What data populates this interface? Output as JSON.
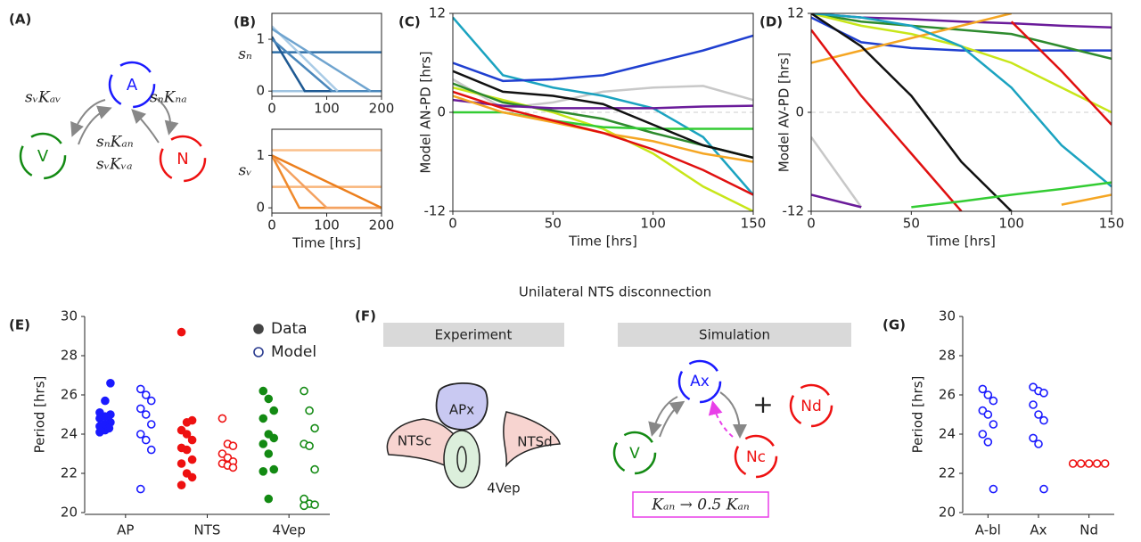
{
  "figure_title": "Unilateral NTS disconnection",
  "diagrams": {
    "A": {
      "panel": "(A)",
      "nodes": [
        "A",
        "V",
        "N"
      ],
      "edge_labels": [
        "sᵥKₐᵥ",
        "sₙKₙₐ",
        "sₙKₐₙ",
        "sᵥKᵥₐ"
      ]
    },
    "F": {
      "panel": "(F)",
      "headers": [
        "Experiment",
        "Simulation"
      ],
      "regions": [
        "APx",
        "NTSc",
        "NTSd",
        "4Vep"
      ],
      "nodes": [
        "Ax",
        "V",
        "Nc",
        "Nd"
      ],
      "plus": "+",
      "caption": "Kₐₙ → 0.5 Kₐₙ"
    }
  },
  "chart_data": [
    {
      "type": "line",
      "panel": "(B)",
      "ylabel": "sₙ",
      "xlim": [
        0,
        200
      ],
      "xticks": [
        0,
        100,
        200
      ],
      "ylim": [
        -0.1,
        1.5
      ],
      "yticks": [
        0,
        1
      ],
      "series": [
        {
          "color": "#2f6fa8",
          "x": [
            0,
            200
          ],
          "values": [
            0.75,
            0.75
          ]
        },
        {
          "color": "#9ec3e0",
          "x": [
            0,
            200
          ],
          "values": [
            0,
            0
          ]
        },
        {
          "color": "#1f5a93",
          "x": [
            0,
            60,
            200
          ],
          "values": [
            1.05,
            0,
            0
          ]
        },
        {
          "color": "#4a87bb",
          "x": [
            0,
            110,
            200
          ],
          "values": [
            1.0,
            0,
            0
          ]
        },
        {
          "color": "#a9cbe6",
          "x": [
            0,
            120
          ],
          "values": [
            1.25,
            0
          ]
        },
        {
          "color": "#6fa4cf",
          "x": [
            0,
            180
          ],
          "values": [
            1.2,
            0
          ]
        }
      ]
    },
    {
      "type": "line",
      "ylabel": "sᵥ",
      "xlabel": "Time [hrs]",
      "xlim": [
        0,
        200
      ],
      "xticks": [
        0,
        100,
        200
      ],
      "ylim": [
        -0.1,
        1.5
      ],
      "yticks": [
        0,
        1
      ],
      "series": [
        {
          "color": "#fbc08c",
          "x": [
            0,
            200
          ],
          "values": [
            1.1,
            1.1
          ]
        },
        {
          "color": "#f8b57a",
          "x": [
            0,
            200
          ],
          "values": [
            0.4,
            0.4
          ]
        },
        {
          "color": "#f08a2c",
          "x": [
            0,
            50,
            200
          ],
          "values": [
            1,
            0,
            0
          ]
        },
        {
          "color": "#f4a261",
          "x": [
            0,
            100,
            200
          ],
          "values": [
            1,
            0,
            0
          ]
        },
        {
          "color": "#ec7f1d",
          "x": [
            0,
            200
          ],
          "values": [
            1,
            0
          ]
        }
      ]
    },
    {
      "type": "line",
      "panel": "(C)",
      "ylabel": "Model AN-PD [hrs]",
      "xlabel": "Time [hrs]",
      "xlim": [
        0,
        150
      ],
      "xticks": [
        0,
        50,
        100,
        150
      ],
      "ylim": [
        -12,
        12
      ],
      "yticks": [
        -12,
        0,
        12
      ],
      "reference_line": 0,
      "x": [
        0,
        25,
        50,
        75,
        100,
        125,
        150
      ],
      "series": [
        {
          "color": "#c8c8c8",
          "values": [
            4,
            0.5,
            1.2,
            2.5,
            3,
            3.2,
            1.5
          ]
        },
        {
          "color": "#1ba3c0",
          "values": [
            11.5,
            4.5,
            3.0,
            2.0,
            0.5,
            -3,
            -10
          ]
        },
        {
          "color": "#1f3fd0",
          "values": [
            6,
            3.8,
            4,
            4.5,
            6,
            7.5,
            9.3
          ]
        },
        {
          "color": "#c8e619",
          "values": [
            3,
            1.5,
            0,
            -2,
            -5,
            -9,
            -12
          ]
        },
        {
          "color": "#2e8b2e",
          "values": [
            3.5,
            1.2,
            0.2,
            -0.8,
            -2.5,
            -4,
            -5.5
          ]
        },
        {
          "color": "#6a1b9a",
          "values": [
            1.5,
            0.8,
            0.5,
            0.5,
            0.5,
            0.7,
            0.8
          ]
        },
        {
          "color": "#33cc33",
          "values": [
            0,
            0,
            -1,
            -1.8,
            -2,
            -2,
            -2
          ]
        },
        {
          "color": "#f5a623",
          "values": [
            2,
            0,
            -1.2,
            -2.5,
            -3.5,
            -5,
            -6
          ]
        },
        {
          "color": "#e01010",
          "values": [
            2.5,
            0.5,
            -1,
            -2.5,
            -4.5,
            -7,
            -10
          ]
        },
        {
          "color": "#111111",
          "values": [
            5,
            2.5,
            2.0,
            1.0,
            -1.5,
            -4,
            -5.5
          ]
        }
      ]
    },
    {
      "type": "line",
      "panel": "(D)",
      "ylabel": "Model AV-PD [hrs]",
      "xlabel": "Time [hrs]",
      "xlim": [
        0,
        150
      ],
      "xticks": [
        0,
        50,
        100,
        150
      ],
      "ylim": [
        -12,
        12
      ],
      "yticks": [
        -12,
        0,
        12
      ],
      "reference_line": 0,
      "x": [
        0,
        25,
        50,
        75,
        100,
        125,
        150
      ],
      "series": [
        {
          "color": "#c8c8c8",
          "values": [
            -3,
            -11.5,
            null,
            null,
            null,
            null,
            null
          ]
        },
        {
          "color": "#1f3fd0",
          "values": [
            11.5,
            8.5,
            7.8,
            7.5,
            7.5,
            7.5,
            7.5
          ]
        },
        {
          "color": "#6a1b9a",
          "values": [
            12,
            11.5,
            11.3,
            11,
            10.8,
            10.5,
            10.3
          ]
        },
        {
          "color": "#2e8b2e",
          "values": [
            12,
            11,
            10.5,
            10,
            9.5,
            8,
            6.5
          ]
        },
        {
          "color": "#c8e619",
          "values": [
            12,
            10.5,
            9.5,
            8,
            6,
            3,
            0
          ]
        },
        {
          "color": "#f5a623",
          "values": [
            6,
            7.5,
            9,
            10.5,
            12,
            null,
            null
          ]
        },
        {
          "color": "#1ba3c0",
          "values": [
            12,
            11.5,
            10.5,
            8,
            3,
            -4,
            -9
          ]
        },
        {
          "color": "#111111",
          "values": [
            12,
            8,
            2,
            -6,
            -12,
            null,
            null
          ]
        },
        {
          "color": "#e01010",
          "values": [
            10,
            2,
            -5,
            -12,
            null,
            null,
            null
          ]
        },
        {
          "color": "#e01010",
          "values": [
            null,
            null,
            null,
            null,
            11,
            5,
            -1.5
          ]
        },
        {
          "color": "#33cc33",
          "values": [
            null,
            null,
            -11.5,
            -10.8,
            -10,
            -9.3,
            -8.5
          ]
        },
        {
          "color": "#6a1b9a",
          "values": [
            -10,
            -11.5,
            null,
            null,
            null,
            null,
            null
          ]
        },
        {
          "color": "#f5a623",
          "values": [
            null,
            null,
            null,
            null,
            null,
            -11.2,
            -10
          ]
        }
      ]
    },
    {
      "type": "strip",
      "panel": "(E)",
      "ylabel": "Period [hrs]",
      "ylim": [
        20,
        30
      ],
      "yticks": [
        20,
        22,
        24,
        26,
        28,
        30
      ],
      "categories": [
        "AP",
        "NTS",
        "4Vep"
      ],
      "category_colors": [
        "#1a1aff",
        "#ee1111",
        "#138a13"
      ],
      "legend": "upper right",
      "series": [
        {
          "name": "Data",
          "color": "#444444",
          "filled": true,
          "values": [
            [
              24.1,
              24.2,
              24.3,
              24.4,
              24.5,
              24.6,
              24.8,
              24.9,
              25.0,
              25.1,
              25.7,
              26.6,
              24.3
            ],
            [
              29.2,
              24.6,
              24.7,
              24.2,
              24.0,
              23.7,
              23.3,
              23.2,
              22.7,
              22.5,
              22.0,
              21.8,
              21.4
            ],
            [
              26.2,
              25.8,
              25.2,
              24.8,
              24.0,
              23.8,
              23.5,
              23.0,
              22.2,
              22.1,
              20.7
            ]
          ]
        },
        {
          "name": "Model",
          "color": "#2a3b8f",
          "filled": false,
          "values": [
            [
              26.3,
              26.0,
              25.7,
              25.3,
              25.0,
              24.5,
              24.0,
              23.7,
              23.2,
              21.2
            ],
            [
              24.8,
              23.5,
              23.4,
              23.0,
              22.8,
              22.6,
              22.5,
              22.4,
              22.3
            ],
            [
              26.2,
              25.2,
              24.3,
              23.5,
              23.4,
              22.2,
              20.7,
              20.45,
              20.4,
              20.35
            ]
          ]
        }
      ]
    },
    {
      "type": "strip",
      "panel": "(G)",
      "ylabel": "Period [hrs]",
      "ylim": [
        20,
        30
      ],
      "yticks": [
        20,
        22,
        24,
        26,
        28,
        30
      ],
      "categories": [
        "A-bl",
        "Ax",
        "Nd"
      ],
      "category_colors": [
        "#1a1aff",
        "#1a1aff",
        "#ee1111"
      ],
      "series": [
        {
          "color": "#1a1aff",
          "filled": false,
          "values": [
            [
              26.3,
              26.0,
              25.7,
              25.2,
              25.0,
              24.5,
              24.0,
              23.6,
              21.2
            ],
            [
              26.4,
              26.2,
              26.1,
              25.5,
              25.0,
              24.7,
              23.8,
              23.5,
              21.2
            ],
            [
              22.5,
              22.5,
              22.5,
              22.5,
              22.5
            ]
          ]
        }
      ]
    }
  ]
}
